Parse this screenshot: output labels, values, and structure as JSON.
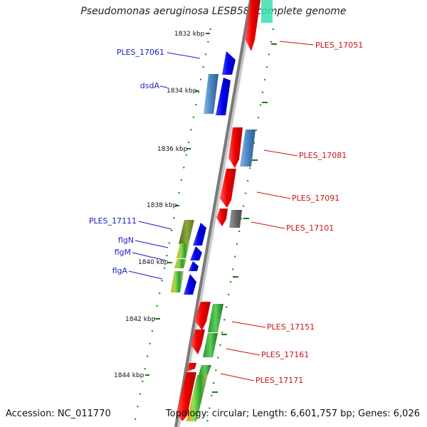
{
  "title": "Pseudomonas aeruginosa LESB58, complete genome",
  "footer": {
    "accession": "Accession: NC_011770",
    "summary": "Topology: circular; Length: 6,601,757 bp; Genes: 6,026"
  },
  "ruler_ticks": [
    "1832 kbp",
    "1834 kbp",
    "1836 kbp",
    "1838 kbp",
    "1840 kbp",
    "1842 kbp",
    "1844 kbp"
  ],
  "left_labels": [
    "PLES_17061",
    "dsdA",
    "PLES_17111",
    "flgN",
    "flgM",
    "flgA"
  ],
  "right_labels": [
    "PLES_17051",
    "PLES_17081",
    "PLES_17091",
    "PLES_17101",
    "PLES_17151",
    "PLES_17161",
    "PLES_17171"
  ],
  "colors": {
    "backbone": "#8a8a8a",
    "tick_green": "#1a7a1a",
    "forward_gene": "#1010ee",
    "reverse_gene": "#ee1111",
    "steel_gene": "#4a86c0",
    "label_left": "#1a1acc",
    "label_right": "#cc1111"
  }
}
